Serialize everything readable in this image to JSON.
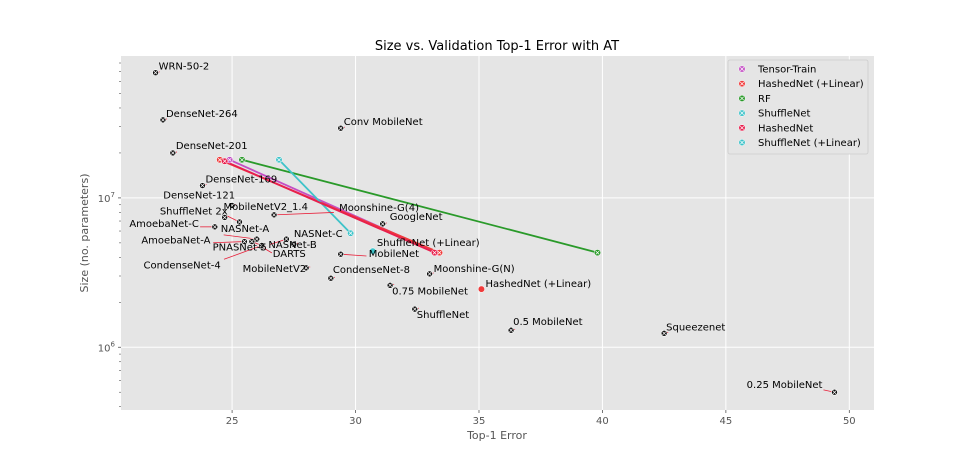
{
  "chart_data": {
    "type": "scatter",
    "title": "Size vs. Validation Top-1 Error with AT",
    "xlabel": "Top-1 Error",
    "ylabel": "Size (no. parameters)",
    "xlim": [
      20.5,
      51
    ],
    "ylim_log10": [
      5.58,
      7.95
    ],
    "yscale": "log",
    "grid": true,
    "legend_position": "top-right",
    "x_ticks": [
      25,
      30,
      35,
      40,
      45,
      50
    ],
    "y_ticks": [
      {
        "value": 1000000,
        "label_base": "10",
        "label_exp": "6"
      },
      {
        "value": 10000000,
        "label_base": "10",
        "label_exp": "7"
      }
    ],
    "models": [
      {
        "name": "WRN-50-2",
        "error": 21.9,
        "params": 68900000
      },
      {
        "name": "DenseNet-264",
        "error": 22.2,
        "params": 33300000
      },
      {
        "name": "Conv MobileNet",
        "error": 29.4,
        "params": 29300000
      },
      {
        "name": "DenseNet-201",
        "error": 22.6,
        "params": 20000000
      },
      {
        "name": "DenseNet-169",
        "error": 23.8,
        "params": 12100000
      },
      {
        "name": "DenseNet-121",
        "error": 25.0,
        "params": 8900000
      },
      {
        "name": "ShuffleNet 2x",
        "error": 24.7,
        "params": 7400000
      },
      {
        "name": "AmoebaNet-C",
        "error": 24.3,
        "params": 6400000
      },
      {
        "name": "MobileNetV2_1.4",
        "error": 25.3,
        "params": 6900000
      },
      {
        "name": "Moonshine-G(4)",
        "error": 26.7,
        "params": 7700000
      },
      {
        "name": "GoogleNet",
        "error": 31.1,
        "params": 6700000
      },
      {
        "name": "NASNet-B",
        "error": 27.2,
        "params": 5300000
      },
      {
        "name": "NASNet-A",
        "error": 26.0,
        "params": 5300000
      },
      {
        "name": "NASNet-C",
        "error": 27.5,
        "params": 4900000
      },
      {
        "name": "AmoebaNet-A",
        "error": 25.5,
        "params": 5100000
      },
      {
        "name": "PNASNet-5",
        "error": 25.8,
        "params": 5100000
      },
      {
        "name": "DARTS",
        "error": 26.2,
        "params": 4700000
      },
      {
        "name": "CondenseNet-4",
        "error": 26.2,
        "params": 4800000
      },
      {
        "name": "MobileNetV2",
        "error": 28.0,
        "params": 3400000
      },
      {
        "name": "MobileNet",
        "error": 29.4,
        "params": 4200000
      },
      {
        "name": "CondenseNet-8",
        "error": 29.0,
        "params": 2900000
      },
      {
        "name": "Moonshine-G(N)",
        "error": 33.0,
        "params": 3100000
      },
      {
        "name": "0.75 MobileNet",
        "error": 31.4,
        "params": 2600000
      },
      {
        "name": "ShuffleNet",
        "error": 32.4,
        "params": 1800000
      },
      {
        "name": "0.5 MobileNet",
        "error": 36.3,
        "params": 1300000
      },
      {
        "name": "Squeezenet",
        "error": 42.5,
        "params": 1240000
      },
      {
        "name": "0.25 MobileNet",
        "error": 49.4,
        "params": 500000
      }
    ],
    "series": [
      {
        "name": "Tensor-Train",
        "color": "#c44ec4",
        "points": [
          {
            "x": 24.9,
            "y": 18000000
          },
          {
            "x": 33.3,
            "y": 4300000
          }
        ]
      },
      {
        "name": "HashedNet (+Linear)",
        "color": "#f03a3a",
        "points": [
          {
            "x": 24.5,
            "y": 18000000
          },
          {
            "x": 33.4,
            "y": 4300000
          }
        ]
      },
      {
        "name": "RF",
        "color": "#2a9a2a",
        "points": [
          {
            "x": 25.4,
            "y": 18000000
          },
          {
            "x": 39.8,
            "y": 4300000
          }
        ]
      },
      {
        "name": "ShuffleNet",
        "color": "#3ec3c9",
        "points": [
          {
            "x": 26.9,
            "y": 18000000
          },
          {
            "x": 29.8,
            "y": 5800000
          }
        ]
      },
      {
        "name": "HashedNet",
        "color": "#e81f4d",
        "points": [
          {
            "x": 24.7,
            "y": 17600000
          },
          {
            "x": 33.2,
            "y": 4300000
          }
        ]
      },
      {
        "name": "ShuffleNet (+Linear)",
        "color": "#3ec3c9",
        "points": [
          {
            "x": 30.7,
            "y": 4400000
          }
        ]
      }
    ],
    "annotation_points": [
      {
        "label": "ShuffleNet (+Linear)",
        "x": 30.7,
        "y": 4400000
      },
      {
        "label": "HashedNet (+Linear)",
        "x": 35.1,
        "y": 2450000
      }
    ],
    "legend": [
      {
        "label": "Tensor-Train",
        "color": "#c44ec4",
        "marker": "x"
      },
      {
        "label": "HashedNet (+Linear)",
        "color": "#f03a3a",
        "marker": "x"
      },
      {
        "label": "RF",
        "color": "#2a9a2a",
        "marker": "x"
      },
      {
        "label": "ShuffleNet",
        "color": "#3ec3c9",
        "marker": "x"
      },
      {
        "label": "HashedNet",
        "color": "#e81f4d",
        "marker": "x"
      },
      {
        "label": "ShuffleNet (+Linear)",
        "color": "#3ec3c9",
        "marker": "x"
      }
    ]
  }
}
